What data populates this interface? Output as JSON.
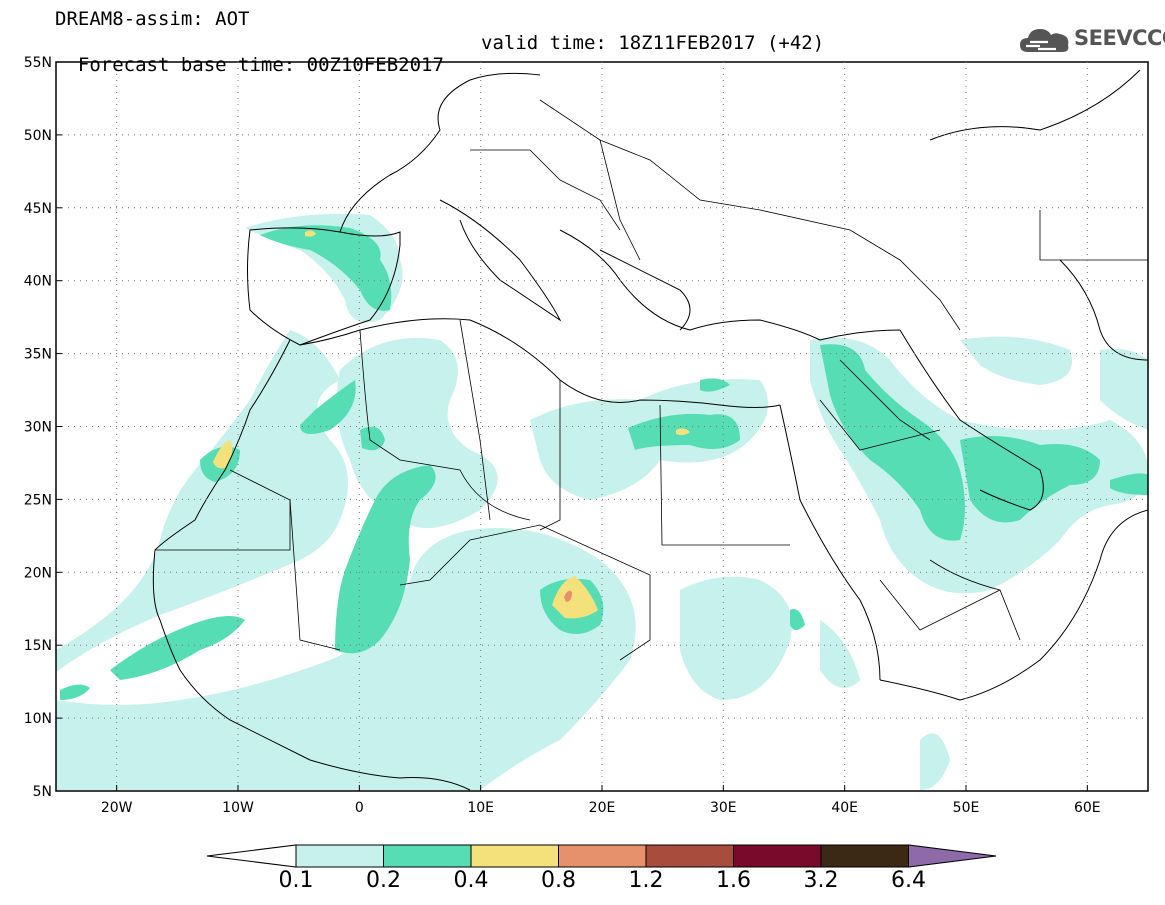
{
  "header": {
    "line1": "DREAM8-assim: AOT",
    "base_time": "Forecast base time: 00Z10FEB2017",
    "valid_time": "valid time: 18Z11FEB2017 (+42)"
  },
  "logo": {
    "text": "SEEVCCC",
    "icon": "cloud-icon"
  },
  "map": {
    "lat_labels": [
      "55N",
      "50N",
      "45N",
      "40N",
      "35N",
      "30N",
      "25N",
      "20N",
      "15N",
      "10N",
      "5N"
    ],
    "lon_labels": [
      "20W",
      "10W",
      "0",
      "10E",
      "20E",
      "30E",
      "40E",
      "50E",
      "60E"
    ],
    "lat_range": [
      5,
      55
    ],
    "lon_range": [
      -25,
      65
    ],
    "grid": "dotted"
  },
  "colorbar": {
    "labels": [
      "0.1",
      "0.2",
      "0.4",
      "0.8",
      "1.2",
      "1.6",
      "3.2",
      "6.4"
    ],
    "colors": [
      "#ffffff",
      "#c6f1ec",
      "#56ddb4",
      "#f4e17c",
      "#e6916b",
      "#a84d3e",
      "#7a0a2c",
      "#3b2916",
      "#8f6aa8"
    ]
  }
}
